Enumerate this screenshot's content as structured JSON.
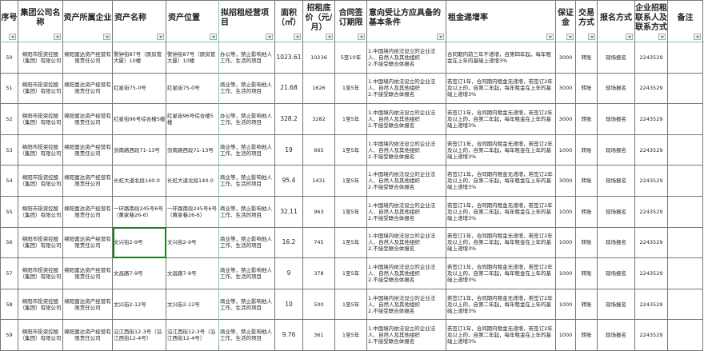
{
  "headers": [
    "序号",
    "集团公司名称",
    "资产所属企业",
    "资产名称",
    "资产位置",
    "拟招租经营项目",
    "面积（㎡）",
    "招租底价（元/月）",
    "合同签订期限",
    "意向受让方应具备的基本条件",
    "租金递增率",
    "保证金",
    "交易方式",
    "报名方式",
    "企业招租联系人及联系方式",
    "备注"
  ],
  "rows": [
    {
      "no": "50",
      "group": "绵阳市投资控股（集团）有限公司",
      "owner": "绵阳富达资产经营有限责任公司",
      "name": "警钟街87号（原房管大厦）10楼",
      "location": "警钟街87号（原房管大厦）10楼",
      "use": "办公等，禁止影响他人工作、生活的项目",
      "area": "1023.61",
      "price": "10236",
      "term": "5至10年",
      "cond": "1.中国境内依法设立的企业法人、自然人及其他组织\n2.不接受联合体报名",
      "rate": "合同期内前三年不递增，自第四年起，每年租金在上年的基础上递增3%",
      "deposit": "3000",
      "trade": "转账",
      "signup": "现场报名",
      "contact": "2243529",
      "note": ""
    },
    {
      "no": "51",
      "group": "绵阳市投资控股（集团）有限公司",
      "owner": "绵阳富达资产经营有限责任公司",
      "name": "红星街75-0号",
      "location": "红星街75-0号",
      "use": "商业等，禁止影响他人工作、生活的项目",
      "area": "21.68",
      "price": "1626",
      "term": "1至5年",
      "cond": "1.中国境内依法设立的企业法人、自然人及其他组织\n2.不接受联合体报名",
      "rate": "若签订1年，合同期内租金无递增，若签订2年及以上的，自第二年起，每年租金在上年的基础上递增3%",
      "deposit": "3000",
      "trade": "转账",
      "signup": "现场报名",
      "contact": "2243529",
      "note": ""
    },
    {
      "no": "52",
      "group": "绵阳市投资控股（集团）有限公司",
      "owner": "绵阳富达资产经营有限责任公司",
      "name": "红星街96号综合楼5楼",
      "location": "红星街96号综合楼5楼",
      "use": "办公等，禁止影响他人工作、生活的项目",
      "area": "328.2",
      "price": "3282",
      "term": "1至5年",
      "cond": "1.中国境内依法设立的企业法人、自然人及其他组织\n2.不接受联合体报名",
      "rate": "若签订1年，合同期内租金无递增，若签订2年及以上的，自第二年起，每年租金在上年的基础上递增3%",
      "deposit": "3000",
      "trade": "转账",
      "signup": "现场报名",
      "contact": "2243529",
      "note": ""
    },
    {
      "no": "53",
      "group": "绵阳市投资控股（集团）有限公司",
      "owner": "绵阳富达资产经营有限责任公司",
      "name": "剑南路西段71-13号",
      "location": "剑南路西段71-13号",
      "use": "商业等，禁止影响他人工作、生活的项目",
      "area": "19",
      "price": "665",
      "term": "1至5年",
      "cond": "1.中国境内依法设立的企业法人、自然人及其他组织\n2.不接受联合体报名",
      "rate": "若签订1年，合同期内租金无递增，若签订2年及以上的，自第二年起，每年租金在上年的基础上递增3%",
      "deposit": "1000",
      "trade": "转账",
      "signup": "现场报名",
      "contact": "2243529",
      "note": ""
    },
    {
      "no": "54",
      "group": "绵阳市投资控股（集团）有限公司",
      "owner": "绵阳富达资产经营有限责任公司",
      "name": "长虹大道北段140-0",
      "location": "长虹大道北段140-0",
      "use": "商业等，禁止影响他人工作、生活的项目",
      "area": "95.4",
      "price": "1431",
      "term": "1至5年",
      "cond": "1.中国境内依法设立的企业法人、自然人及其他组织\n2.不接受联合体报名",
      "rate": "若签订1年，合同期内租金无递增，若签订2年及以上的，自第二年起，每年租金在上年的基础上递增3%",
      "deposit": "3000",
      "trade": "转账",
      "signup": "现场报名",
      "contact": "2243529",
      "note": ""
    },
    {
      "no": "55",
      "group": "绵阳市投资控股（集团）有限公司",
      "owner": "绵阳富达资产经营有限责任公司",
      "name": "一环路南段245号6号（黄家巷26-6）",
      "location": "一环路南段245号6号（黄家巷26-6）",
      "use": "商业等，禁止影响他人工作、生活的项目",
      "area": "32.11",
      "price": "963",
      "term": "1至5年",
      "cond": "1.中国境内依法设立的企业法人、自然人及其他组织\n2.不接受联合体报名",
      "rate": "若签订1年，合同期内租金无递增，若签订2年及以上的，自第二年起，每年租金在上年的基础上递增3%",
      "deposit": "1000",
      "trade": "转账",
      "signup": "现场报名",
      "contact": "2243529",
      "note": ""
    },
    {
      "no": "56",
      "group": "绵阳市投资控股（集团）有限公司",
      "owner": "绵阳富达资产经营有限责任公司",
      "name": "文兴街2-9号",
      "location": "文兴街2-9号",
      "use": "商业等，禁止影响他人工作、生活的项目",
      "area": "16.2",
      "price": "745",
      "term": "1至5年",
      "cond": "1.中国境内依法设立的企业法人、自然人及其他组织\n2.不接受联合体报名",
      "rate": "若签订1年，合同期内租金无递增，若签订2年及以上的，自第二年起，每年租金在上年的基础上递增3%",
      "deposit": "1000",
      "trade": "转账",
      "signup": "现场报名",
      "contact": "2243529",
      "note": ""
    },
    {
      "no": "57",
      "group": "绵阳市投资控股（集团）有限公司",
      "owner": "绵阳富达资产经营有限责任公司",
      "name": "文昌路7-9号",
      "location": "文昌路7-9号",
      "use": "商业等，禁止影响他人工作、生活的项目",
      "area": "9",
      "price": "378",
      "term": "1至5年",
      "cond": "1.中国境内依法设立的企业法人、自然人及其他组织\n2.不接受联合体报名",
      "rate": "若签订1年，合同期内租金无递增，若签订2年及以上的，自第二年起，每年租金在上年的基础上递增3%",
      "deposit": "1000",
      "trade": "转账",
      "signup": "现场报名",
      "contact": "2243529",
      "note": ""
    },
    {
      "no": "58",
      "group": "绵阳市投资控股（集团）有限公司",
      "owner": "绵阳富达资产经营有限责任公司",
      "name": "文兴街2-12号",
      "location": "文兴街2-12号",
      "use": "商业等，禁止影响他人工作、生活的项目",
      "area": "10",
      "price": "500",
      "term": "1至5年",
      "cond": "1.中国境内依法设立的企业法人、自然人及其他组织\n2.不接受联合体报名",
      "rate": "若签订1年，合同期内租金无递增，若签订2年及以上的，自第二年起，每年租金在上年的基础上递增3%",
      "deposit": "1000",
      "trade": "转账",
      "signup": "现场报名",
      "contact": "2243529",
      "note": ""
    },
    {
      "no": "59",
      "group": "绵阳市投资控股（集团）有限公司",
      "owner": "绵阳富达资产经营有限责任公司",
      "name": "沿江西街12-3号（沿江西街12-4号）",
      "location": "沿江西街12-3号（沿江西街12-4号）",
      "use": "商业等，禁止影响他人工作、生活的项目",
      "area": "9.76",
      "price": "361",
      "term": "1至5年",
      "cond": "1.中国境内依法设立的企业法人、自然人及其他组织\n2.不接受联合体报名",
      "rate": "若签订1年，合同期内租金无递增，若签订2年及以上的，自第二年起，每年租金在上年的基础上递增3%",
      "deposit": "1000",
      "trade": "转账",
      "signup": "现场报名",
      "contact": "2243529",
      "note": ""
    }
  ],
  "selected_cell": {
    "row": "56",
    "column": "资产名称"
  },
  "colors": {
    "freeze_line": "#6fd3a5",
    "selection": "#1e7b1e",
    "filter_arrow": "#2a9d5c"
  }
}
